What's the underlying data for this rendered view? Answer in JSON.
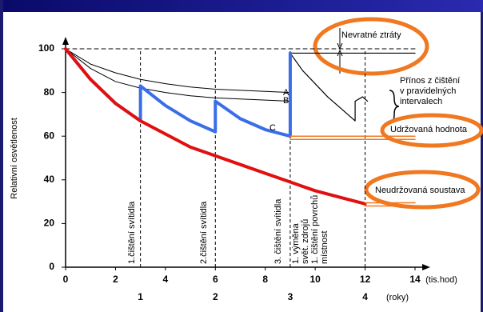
{
  "chart_data": {
    "type": "line",
    "y_label": "Relativní osvětlenost",
    "x_label": "(tis.hod)",
    "x2_label": "(roky)",
    "xlim": [
      0,
      14
    ],
    "ylim": [
      0,
      100
    ],
    "xticks": [
      0,
      2,
      4,
      6,
      8,
      10,
      12,
      14
    ],
    "yticks": [
      0,
      20,
      40,
      60,
      80,
      100
    ],
    "x2ticks": [
      {
        "value": 3,
        "label": "1"
      },
      {
        "value": 6,
        "label": "2"
      },
      {
        "value": 9,
        "label": "3"
      },
      {
        "value": 12,
        "label": "4"
      }
    ],
    "series": [
      {
        "color": "#000000",
        "width": 1,
        "dash": true,
        "x": [
          0,
          14
        ],
        "values": [
          100,
          100
        ]
      },
      {
        "color": "#000000",
        "width": 1,
        "x": [
          0,
          1,
          2,
          3,
          4,
          5,
          6,
          7,
          8,
          9
        ],
        "values": [
          100,
          93,
          89,
          86,
          84,
          82.5,
          81.5,
          81,
          80.5,
          80
        ]
      },
      {
        "color": "#000000",
        "width": 1,
        "x": [
          0,
          1,
          2,
          3,
          4,
          5,
          6,
          7,
          8,
          9
        ],
        "values": [
          100,
          91,
          85,
          82,
          80,
          78.5,
          77.5,
          77,
          76.5,
          76
        ]
      },
      {
        "color": "#000000",
        "width": 1.2,
        "x": [
          9,
          14
        ],
        "values": [
          98,
          98
        ]
      },
      {
        "color": "#000000",
        "width": 1.2,
        "x": [
          9,
          9.5,
          10,
          10.5,
          11,
          11.6,
          11.6,
          11.9,
          12.1
        ],
        "values": [
          98,
          90,
          84,
          78,
          73,
          67,
          76,
          78,
          76
        ]
      },
      {
        "color": "#3a6ee8",
        "width": 4,
        "x": [
          0,
          1,
          2,
          3,
          3,
          4,
          5,
          6,
          6,
          7,
          8,
          9,
          9
        ],
        "values": [
          100,
          86,
          75,
          67,
          83,
          74,
          67,
          62,
          76,
          68,
          63,
          60,
          98
        ]
      },
      {
        "color": "#e01010",
        "width": 4,
        "x": [
          0,
          1,
          2,
          3,
          4,
          5,
          6,
          7,
          8,
          9,
          10,
          11,
          12
        ],
        "values": [
          100,
          86,
          75,
          67,
          61,
          55,
          51,
          47,
          43,
          39,
          35,
          32,
          29
        ]
      },
      {
        "color": "#f07820",
        "width": 1.5,
        "x": [
          9,
          14
        ],
        "values": [
          60,
          60
        ]
      },
      {
        "color": "#f07820",
        "width": 1.5,
        "x": [
          9,
          14
        ],
        "values": [
          58.5,
          58.5
        ]
      },
      {
        "color": "#f07820",
        "width": 1.5,
        "x": [
          12,
          14
        ],
        "values": [
          29.5,
          29.5
        ]
      },
      {
        "color": "#f07820",
        "width": 1.5,
        "x": [
          12,
          14
        ],
        "values": [
          28,
          28
        ]
      }
    ],
    "annotations": [
      "A",
      "B",
      "C",
      "Nevratné ztráty",
      "Přínos z čištění",
      "v pravidelných",
      "intervalech",
      "Udržovaná hodnota",
      "Neudržovaná soustava",
      "1.čištění svítidla",
      "2.čištění svítidla",
      "3. čištění svítidla",
      "1. výměna",
      "svět. zdrojů",
      "1. čištění povrchů",
      "místnost"
    ]
  }
}
